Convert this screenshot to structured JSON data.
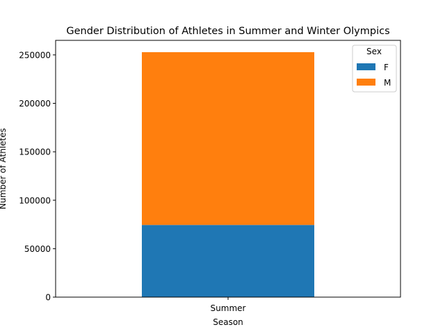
{
  "chart_data": {
    "type": "bar",
    "stacked": true,
    "title": "Gender Distribution of Athletes in Summer and Winter Olympics",
    "xlabel": "Season",
    "ylabel": "Number of Athletes",
    "categories": [
      "Summer"
    ],
    "series": [
      {
        "name": "F",
        "values": [
          74500
        ],
        "color": "#1f77b4"
      },
      {
        "name": "M",
        "values": [
          178300
        ],
        "color": "#ff7f0e"
      }
    ],
    "ylim": [
      0,
      265000
    ],
    "yticks": [
      0,
      50000,
      100000,
      150000,
      200000,
      250000
    ],
    "ytick_labels": [
      "0",
      "50000",
      "100000",
      "150000",
      "200000",
      "250000"
    ],
    "legend": {
      "title": "Sex",
      "placement": "top-right"
    },
    "grid": false
  }
}
